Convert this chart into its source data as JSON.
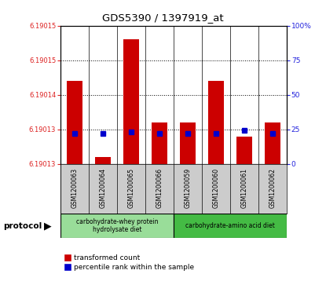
{
  "title": "GDS5390 / 1397919_at",
  "samples": [
    "GSM1200063",
    "GSM1200064",
    "GSM1200065",
    "GSM1200066",
    "GSM1200059",
    "GSM1200060",
    "GSM1200061",
    "GSM1200062"
  ],
  "transformed_counts": [
    6.190142,
    6.190131,
    6.190148,
    6.190136,
    6.190136,
    6.190142,
    6.190134,
    6.190136
  ],
  "percentile_ranks": [
    22,
    22,
    23,
    22,
    22,
    22,
    24,
    22
  ],
  "ylim_left": [
    6.19013,
    6.19015
  ],
  "ylim_right": [
    0,
    100
  ],
  "bar_color": "#cc0000",
  "percentile_color": "#0000cc",
  "protocol_groups": [
    {
      "label": "carbohydrate-whey protein\nhydrolysate diet",
      "samples_range": [
        0,
        4
      ],
      "color": "#99dd99"
    },
    {
      "label": "carbohydrate-amino acid diet",
      "samples_range": [
        4,
        8
      ],
      "color": "#44bb44"
    }
  ],
  "tick_label_color_left": "#dd2222",
  "tick_label_color_right": "#2222dd",
  "sample_bg": "#cccccc",
  "fig_width": 4.15,
  "fig_height": 3.63,
  "dpi": 100
}
